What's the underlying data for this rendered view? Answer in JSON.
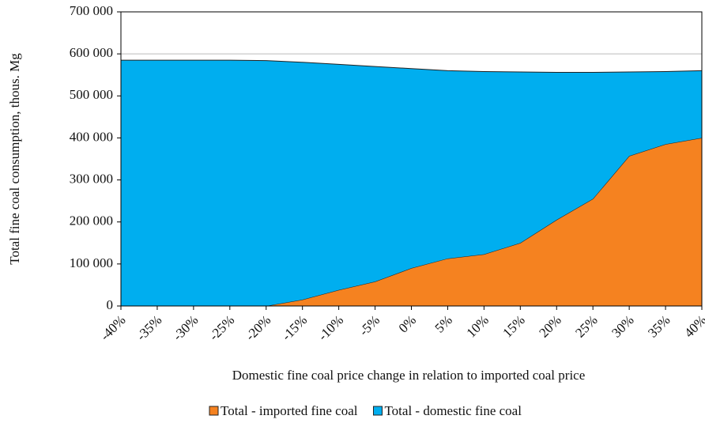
{
  "chart_data": {
    "type": "stacked_area",
    "x_label": "Domestic fine coal price change in relation to imported coal price",
    "y_label": "Total fine coal consumption, thous. Mg",
    "categories": [
      "-40%",
      "-35%",
      "-30%",
      "-25%",
      "-20%",
      "-15%",
      "-10%",
      "-5%",
      "0%",
      "5%",
      "10%",
      "15%",
      "20%",
      "25%",
      "30%",
      "35%",
      "40%"
    ],
    "series": [
      {
        "name": "Total - imported fine coal",
        "color": "#f58220",
        "values": [
          0,
          0,
          0,
          0,
          0,
          15000,
          38000,
          58000,
          90000,
          113000,
          123000,
          150000,
          205000,
          255000,
          357000,
          385000,
          400000
        ]
      },
      {
        "name": "Total - domestic fine coal",
        "color": "#00aeef",
        "values": [
          585000,
          585000,
          585000,
          585000,
          584000,
          565000,
          537000,
          512000,
          475000,
          447000,
          435000,
          407000,
          351000,
          301000,
          200000,
          173000,
          160000
        ]
      }
    ],
    "ylim": [
      0,
      700000
    ],
    "yticks": [
      0,
      {
        "value": 100000,
        "label": "100 000"
      },
      {
        "value": 200000,
        "label": "200 000"
      },
      {
        "value": 300000,
        "label": "300 000"
      },
      {
        "value": 400000,
        "label": "400 000"
      },
      {
        "value": 500000,
        "label": "500 000"
      },
      {
        "value": 600000,
        "label": "600 000"
      },
      {
        "value": 700000,
        "label": "700 000"
      }
    ],
    "grid": true,
    "legend": "bottom"
  }
}
